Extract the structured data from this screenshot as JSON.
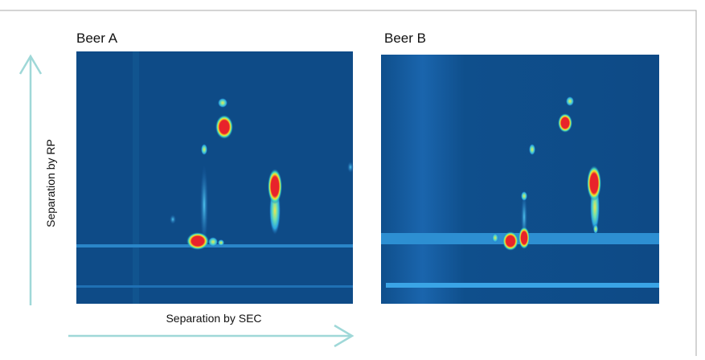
{
  "panels": [
    {
      "title": "Beer A"
    },
    {
      "title": "Beer B"
    }
  ],
  "axes": {
    "y_label": "Separation by RP",
    "x_label": "Separation by SEC"
  }
}
